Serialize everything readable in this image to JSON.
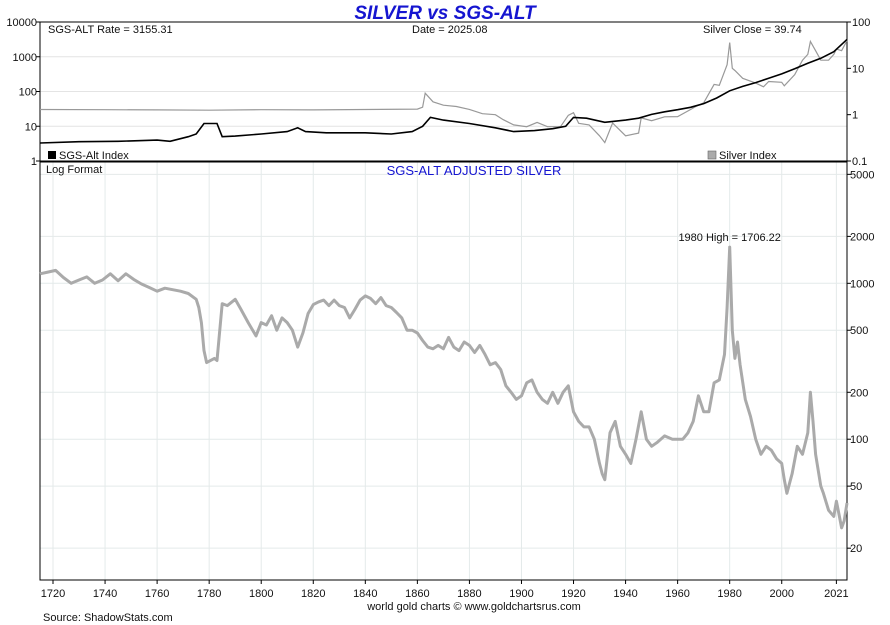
{
  "chart_data": [
    {
      "type": "line",
      "title": "SILVER vs SGS-ALT",
      "info": {
        "rate": "SGS-ALT Rate = 3155.31",
        "date": "Date = 2025.08",
        "close": "Silver Close = 39.74"
      },
      "log_scale": true,
      "left_axis": {
        "ylim": [
          1,
          10000
        ],
        "ticks": [
          "10000",
          "1000",
          "100",
          "10",
          "1"
        ]
      },
      "right_axis": {
        "ylim": [
          0.1,
          100
        ],
        "ticks": [
          "100",
          "10",
          "1",
          "0.1"
        ]
      },
      "series": [
        {
          "name": "SGS-Alt Index",
          "axis": "left",
          "color": "#000000",
          "points": [
            [
              1715,
              3.3
            ],
            [
              1730,
              3.6
            ],
            [
              1745,
              3.7
            ],
            [
              1760,
              4.0
            ],
            [
              1765,
              3.7
            ],
            [
              1772,
              5.0
            ],
            [
              1775,
              6.0
            ],
            [
              1778,
              12
            ],
            [
              1783,
              12
            ],
            [
              1785,
              5.0
            ],
            [
              1790,
              5.2
            ],
            [
              1800,
              6.0
            ],
            [
              1810,
              7.0
            ],
            [
              1814,
              9.0
            ],
            [
              1817,
              7.0
            ],
            [
              1825,
              6.5
            ],
            [
              1840,
              6.5
            ],
            [
              1850,
              6.0
            ],
            [
              1858,
              7.0
            ],
            [
              1862,
              10
            ],
            [
              1865,
              18
            ],
            [
              1870,
              15
            ],
            [
              1880,
              12
            ],
            [
              1890,
              9
            ],
            [
              1897,
              7
            ],
            [
              1905,
              7.5
            ],
            [
              1912,
              8.5
            ],
            [
              1917,
              10
            ],
            [
              1920,
              18
            ],
            [
              1925,
              17
            ],
            [
              1932,
              13
            ],
            [
              1940,
              15
            ],
            [
              1945,
              17
            ],
            [
              1950,
              22
            ],
            [
              1955,
              26
            ],
            [
              1960,
              30
            ],
            [
              1965,
              35
            ],
            [
              1970,
              45
            ],
            [
              1975,
              65
            ],
            [
              1980,
              105
            ],
            [
              1985,
              140
            ],
            [
              1990,
              180
            ],
            [
              1995,
              240
            ],
            [
              2000,
              320
            ],
            [
              2005,
              450
            ],
            [
              2010,
              650
            ],
            [
              2015,
              900
            ],
            [
              2020,
              1400
            ],
            [
              2025.08,
              3155.31
            ]
          ]
        },
        {
          "name": "Silver Index",
          "axis": "right",
          "color": "#999999",
          "points": [
            [
              1715,
              1.29
            ],
            [
              1740,
              1.28
            ],
            [
              1760,
              1.27
            ],
            [
              1780,
              1.25
            ],
            [
              1800,
              1.28
            ],
            [
              1820,
              1.27
            ],
            [
              1840,
              1.29
            ],
            [
              1860,
              1.32
            ],
            [
              1862,
              1.45
            ],
            [
              1863,
              2.9
            ],
            [
              1866,
              1.9
            ],
            [
              1870,
              1.6
            ],
            [
              1875,
              1.5
            ],
            [
              1880,
              1.3
            ],
            [
              1885,
              1.05
            ],
            [
              1890,
              1.0
            ],
            [
              1893,
              0.78
            ],
            [
              1897,
              0.6
            ],
            [
              1902,
              0.55
            ],
            [
              1906,
              0.68
            ],
            [
              1910,
              0.55
            ],
            [
              1915,
              0.55
            ],
            [
              1918,
              0.97
            ],
            [
              1920,
              1.1
            ],
            [
              1922,
              0.65
            ],
            [
              1926,
              0.6
            ],
            [
              1930,
              0.35
            ],
            [
              1932,
              0.25
            ],
            [
              1935,
              0.66
            ],
            [
              1940,
              0.35
            ],
            [
              1945,
              0.4
            ],
            [
              1946,
              0.85
            ],
            [
              1950,
              0.74
            ],
            [
              1955,
              0.9
            ],
            [
              1960,
              0.91
            ],
            [
              1965,
              1.29
            ],
            [
              1967,
              1.5
            ],
            [
              1970,
              1.8
            ],
            [
              1974,
              4.5
            ],
            [
              1976,
              4.3
            ],
            [
              1979,
              12
            ],
            [
              1980,
              36
            ],
            [
              1981,
              10
            ],
            [
              1982,
              9
            ],
            [
              1985,
              6.1
            ],
            [
              1990,
              4.8
            ],
            [
              1993,
              4.0
            ],
            [
              1995,
              5.2
            ],
            [
              2000,
              5.0
            ],
            [
              2001,
              4.2
            ],
            [
              2005,
              7.3
            ],
            [
              2008,
              15
            ],
            [
              2010,
              20
            ],
            [
              2011,
              38
            ],
            [
              2013,
              24
            ],
            [
              2015,
              15
            ],
            [
              2018,
              15
            ],
            [
              2020,
              20
            ],
            [
              2021,
              26
            ],
            [
              2023,
              24
            ],
            [
              2025.08,
              39.74
            ]
          ]
        }
      ],
      "legend": [
        "SGS-Alt Index",
        "Silver Index"
      ],
      "legend_placement": "bottom"
    },
    {
      "type": "line",
      "title": "SGS-ALT ADJUSTED  SILVER",
      "note": "Log Format",
      "annotation": "1980 High = 1706.22",
      "log_scale": true,
      "ylim": [
        12.5,
        6000
      ],
      "y_ticks": [
        "5000",
        "2000",
        "1000",
        "500",
        "200",
        "100",
        "50",
        "20"
      ],
      "x_ticks": [
        "1720",
        "1740",
        "1760",
        "1780",
        "1800",
        "1820",
        "1840",
        "1860",
        "1880",
        "1900",
        "1920",
        "1940",
        "1960",
        "1980",
        "2000",
        "2021"
      ],
      "xlim": [
        1715,
        2025.08
      ],
      "color": "#aaaaaa",
      "series": [
        {
          "points": [
            [
              1715,
              1150
            ],
            [
              1718,
              1180
            ],
            [
              1721,
              1210
            ],
            [
              1724,
              1090
            ],
            [
              1727,
              1000
            ],
            [
              1730,
              1050
            ],
            [
              1733,
              1100
            ],
            [
              1736,
              1000
            ],
            [
              1739,
              1050
            ],
            [
              1742,
              1150
            ],
            [
              1745,
              1040
            ],
            [
              1748,
              1150
            ],
            [
              1751,
              1060
            ],
            [
              1754,
              990
            ],
            [
              1757,
              940
            ],
            [
              1760,
              890
            ],
            [
              1763,
              930
            ],
            [
              1766,
              910
            ],
            [
              1769,
              890
            ],
            [
              1772,
              860
            ],
            [
              1775,
              790
            ],
            [
              1776,
              700
            ],
            [
              1777,
              560
            ],
            [
              1778,
              370
            ],
            [
              1779,
              310
            ],
            [
              1782,
              330
            ],
            [
              1783,
              320
            ],
            [
              1785,
              740
            ],
            [
              1787,
              720
            ],
            [
              1790,
              790
            ],
            [
              1792,
              690
            ],
            [
              1795,
              560
            ],
            [
              1798,
              460
            ],
            [
              1800,
              560
            ],
            [
              1802,
              540
            ],
            [
              1804,
              620
            ],
            [
              1806,
              500
            ],
            [
              1808,
              600
            ],
            [
              1810,
              560
            ],
            [
              1812,
              500
            ],
            [
              1814,
              390
            ],
            [
              1816,
              480
            ],
            [
              1818,
              640
            ],
            [
              1820,
              730
            ],
            [
              1822,
              760
            ],
            [
              1824,
              780
            ],
            [
              1826,
              720
            ],
            [
              1828,
              780
            ],
            [
              1830,
              720
            ],
            [
              1832,
              700
            ],
            [
              1834,
              600
            ],
            [
              1836,
              680
            ],
            [
              1838,
              780
            ],
            [
              1840,
              830
            ],
            [
              1842,
              800
            ],
            [
              1844,
              740
            ],
            [
              1846,
              810
            ],
            [
              1848,
              720
            ],
            [
              1850,
              700
            ],
            [
              1852,
              650
            ],
            [
              1854,
              600
            ],
            [
              1856,
              500
            ],
            [
              1858,
              500
            ],
            [
              1860,
              480
            ],
            [
              1862,
              430
            ],
            [
              1864,
              390
            ],
            [
              1866,
              380
            ],
            [
              1868,
              400
            ],
            [
              1870,
              380
            ],
            [
              1872,
              450
            ],
            [
              1874,
              390
            ],
            [
              1876,
              370
            ],
            [
              1878,
              420
            ],
            [
              1880,
              400
            ],
            [
              1882,
              360
            ],
            [
              1884,
              400
            ],
            [
              1886,
              350
            ],
            [
              1888,
              300
            ],
            [
              1890,
              310
            ],
            [
              1892,
              280
            ],
            [
              1894,
              220
            ],
            [
              1896,
              200
            ],
            [
              1898,
              180
            ],
            [
              1900,
              190
            ],
            [
              1902,
              230
            ],
            [
              1904,
              240
            ],
            [
              1906,
              200
            ],
            [
              1908,
              180
            ],
            [
              1910,
              170
            ],
            [
              1912,
              200
            ],
            [
              1914,
              170
            ],
            [
              1916,
              200
            ],
            [
              1918,
              220
            ],
            [
              1920,
              150
            ],
            [
              1922,
              130
            ],
            [
              1924,
              120
            ],
            [
              1926,
              120
            ],
            [
              1928,
              100
            ],
            [
              1930,
              70
            ],
            [
              1931,
              60
            ],
            [
              1932,
              55
            ],
            [
              1934,
              110
            ],
            [
              1936,
              130
            ],
            [
              1938,
              90
            ],
            [
              1940,
              80
            ],
            [
              1942,
              70
            ],
            [
              1944,
              100
            ],
            [
              1946,
              150
            ],
            [
              1948,
              100
            ],
            [
              1950,
              90
            ],
            [
              1952,
              95
            ],
            [
              1955,
              105
            ],
            [
              1958,
              100
            ],
            [
              1960,
              100
            ],
            [
              1962,
              100
            ],
            [
              1964,
              110
            ],
            [
              1966,
              130
            ],
            [
              1968,
              190
            ],
            [
              1970,
              150
            ],
            [
              1972,
              150
            ],
            [
              1974,
              230
            ],
            [
              1976,
              240
            ],
            [
              1978,
              350
            ],
            [
              1979,
              700
            ],
            [
              1980,
              1706.22
            ],
            [
              1981,
              500
            ],
            [
              1982,
              330
            ],
            [
              1983,
              420
            ],
            [
              1984,
              300
            ],
            [
              1986,
              180
            ],
            [
              1988,
              140
            ],
            [
              1990,
              100
            ],
            [
              1992,
              80
            ],
            [
              1994,
              90
            ],
            [
              1996,
              85
            ],
            [
              1998,
              75
            ],
            [
              2000,
              70
            ],
            [
              2001,
              55
            ],
            [
              2002,
              45
            ],
            [
              2004,
              60
            ],
            [
              2006,
              90
            ],
            [
              2008,
              80
            ],
            [
              2010,
              110
            ],
            [
              2011,
              200
            ],
            [
              2012,
              130
            ],
            [
              2013,
              80
            ],
            [
              2015,
              50
            ],
            [
              2016,
              45
            ],
            [
              2018,
              35
            ],
            [
              2020,
              32
            ],
            [
              2021,
              40
            ],
            [
              2022,
              33
            ],
            [
              2023,
              27
            ],
            [
              2024,
              30
            ],
            [
              2025.08,
              39
            ]
          ]
        }
      ],
      "grid": true
    }
  ],
  "source": "Source: ShadowStats.com",
  "credit": "world gold charts © www.goldchartsrus.com"
}
